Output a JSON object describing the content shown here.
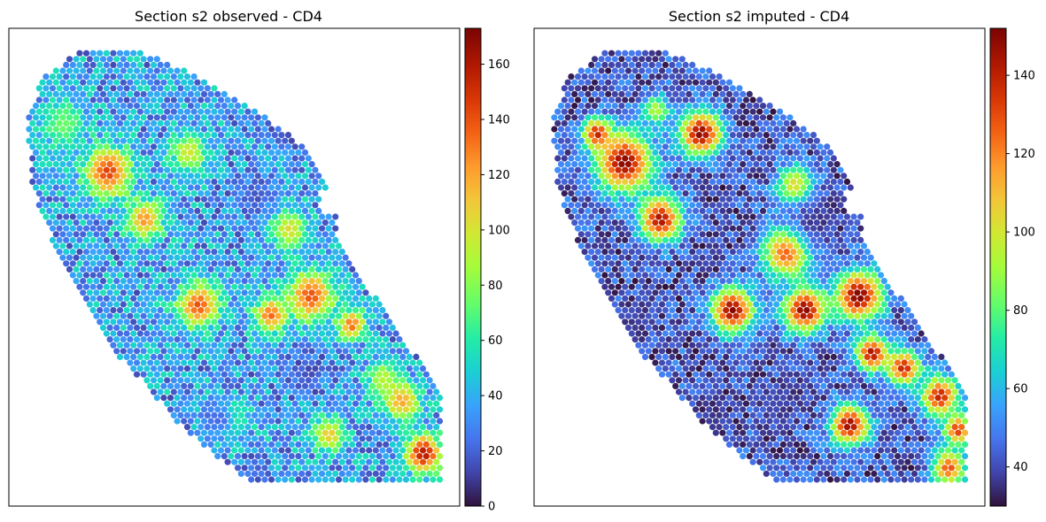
{
  "chart_data": [
    {
      "type": "scatter",
      "title": "Section s2 observed - CD4",
      "xlabel": "",
      "ylabel": "",
      "grid": false,
      "colorbar": {
        "cmap": "turbo",
        "min": 0,
        "max": 173,
        "ticks": [
          0,
          20,
          40,
          60,
          80,
          100,
          120,
          140,
          160
        ],
        "tick_labels": [
          "0",
          "20",
          "40",
          "60",
          "80",
          "100",
          "120",
          "140",
          "160"
        ]
      },
      "background_level": 35,
      "hotspots": [
        {
          "cx": 0.22,
          "cy": 0.3,
          "r": 0.05,
          "v": 145
        },
        {
          "cx": 0.3,
          "cy": 0.4,
          "r": 0.04,
          "v": 125
        },
        {
          "cx": 0.4,
          "cy": 0.26,
          "r": 0.04,
          "v": 100
        },
        {
          "cx": 0.42,
          "cy": 0.58,
          "r": 0.045,
          "v": 140
        },
        {
          "cx": 0.58,
          "cy": 0.6,
          "r": 0.035,
          "v": 135
        },
        {
          "cx": 0.67,
          "cy": 0.56,
          "r": 0.05,
          "v": 140
        },
        {
          "cx": 0.62,
          "cy": 0.42,
          "r": 0.04,
          "v": 105
        },
        {
          "cx": 0.76,
          "cy": 0.62,
          "r": 0.03,
          "v": 135
        },
        {
          "cx": 0.83,
          "cy": 0.73,
          "r": 0.035,
          "v": 90
        },
        {
          "cx": 0.87,
          "cy": 0.78,
          "r": 0.04,
          "v": 120
        },
        {
          "cx": 0.92,
          "cy": 0.89,
          "r": 0.04,
          "v": 160
        },
        {
          "cx": 0.71,
          "cy": 0.85,
          "r": 0.035,
          "v": 110
        },
        {
          "cx": 0.12,
          "cy": 0.2,
          "r": 0.05,
          "v": 75
        },
        {
          "cx": 0.49,
          "cy": 0.82,
          "r": 0.04,
          "v": 80
        }
      ],
      "coldspots": [
        {
          "cx": 0.62,
          "cy": 0.2,
          "r": 0.06,
          "v": 12
        },
        {
          "cx": 0.55,
          "cy": 0.35,
          "r": 0.045,
          "v": 15
        },
        {
          "cx": 0.66,
          "cy": 0.72,
          "r": 0.05,
          "v": 10
        },
        {
          "cx": 0.47,
          "cy": 0.82,
          "r": 0.035,
          "v": 8
        },
        {
          "cx": 0.55,
          "cy": 0.95,
          "r": 0.04,
          "v": 15
        }
      ],
      "noise": 22
    },
    {
      "type": "scatter",
      "title": "Section s2 imputed - CD4",
      "xlabel": "",
      "ylabel": "",
      "grid": false,
      "colorbar": {
        "cmap": "turbo",
        "min": 30,
        "max": 152,
        "ticks": [
          40,
          60,
          80,
          100,
          120,
          140
        ],
        "tick_labels": [
          "40",
          "60",
          "80",
          "100",
          "120",
          "140"
        ]
      },
      "background_level": 42,
      "hotspots": [
        {
          "cx": 0.2,
          "cy": 0.28,
          "r": 0.06,
          "v": 150
        },
        {
          "cx": 0.28,
          "cy": 0.4,
          "r": 0.045,
          "v": 145
        },
        {
          "cx": 0.37,
          "cy": 0.22,
          "r": 0.045,
          "v": 150
        },
        {
          "cx": 0.14,
          "cy": 0.22,
          "r": 0.03,
          "v": 140
        },
        {
          "cx": 0.56,
          "cy": 0.47,
          "r": 0.05,
          "v": 130
        },
        {
          "cx": 0.44,
          "cy": 0.59,
          "r": 0.045,
          "v": 150
        },
        {
          "cx": 0.6,
          "cy": 0.59,
          "r": 0.045,
          "v": 150
        },
        {
          "cx": 0.72,
          "cy": 0.56,
          "r": 0.05,
          "v": 152
        },
        {
          "cx": 0.75,
          "cy": 0.68,
          "r": 0.035,
          "v": 145
        },
        {
          "cx": 0.82,
          "cy": 0.71,
          "r": 0.035,
          "v": 140
        },
        {
          "cx": 0.9,
          "cy": 0.77,
          "r": 0.04,
          "v": 140
        },
        {
          "cx": 0.7,
          "cy": 0.83,
          "r": 0.04,
          "v": 148
        },
        {
          "cx": 0.94,
          "cy": 0.84,
          "r": 0.03,
          "v": 135
        },
        {
          "cx": 0.92,
          "cy": 0.92,
          "r": 0.035,
          "v": 130
        },
        {
          "cx": 0.58,
          "cy": 0.33,
          "r": 0.04,
          "v": 110
        },
        {
          "cx": 0.27,
          "cy": 0.17,
          "r": 0.03,
          "v": 95
        }
      ],
      "coldspots": [
        {
          "cx": 0.63,
          "cy": 0.4,
          "r": 0.06,
          "v": 35
        },
        {
          "cx": 0.22,
          "cy": 0.62,
          "r": 0.05,
          "v": 36
        },
        {
          "cx": 0.4,
          "cy": 0.8,
          "r": 0.05,
          "v": 33
        },
        {
          "cx": 0.55,
          "cy": 0.78,
          "r": 0.05,
          "v": 36
        }
      ],
      "noise": 12
    }
  ]
}
